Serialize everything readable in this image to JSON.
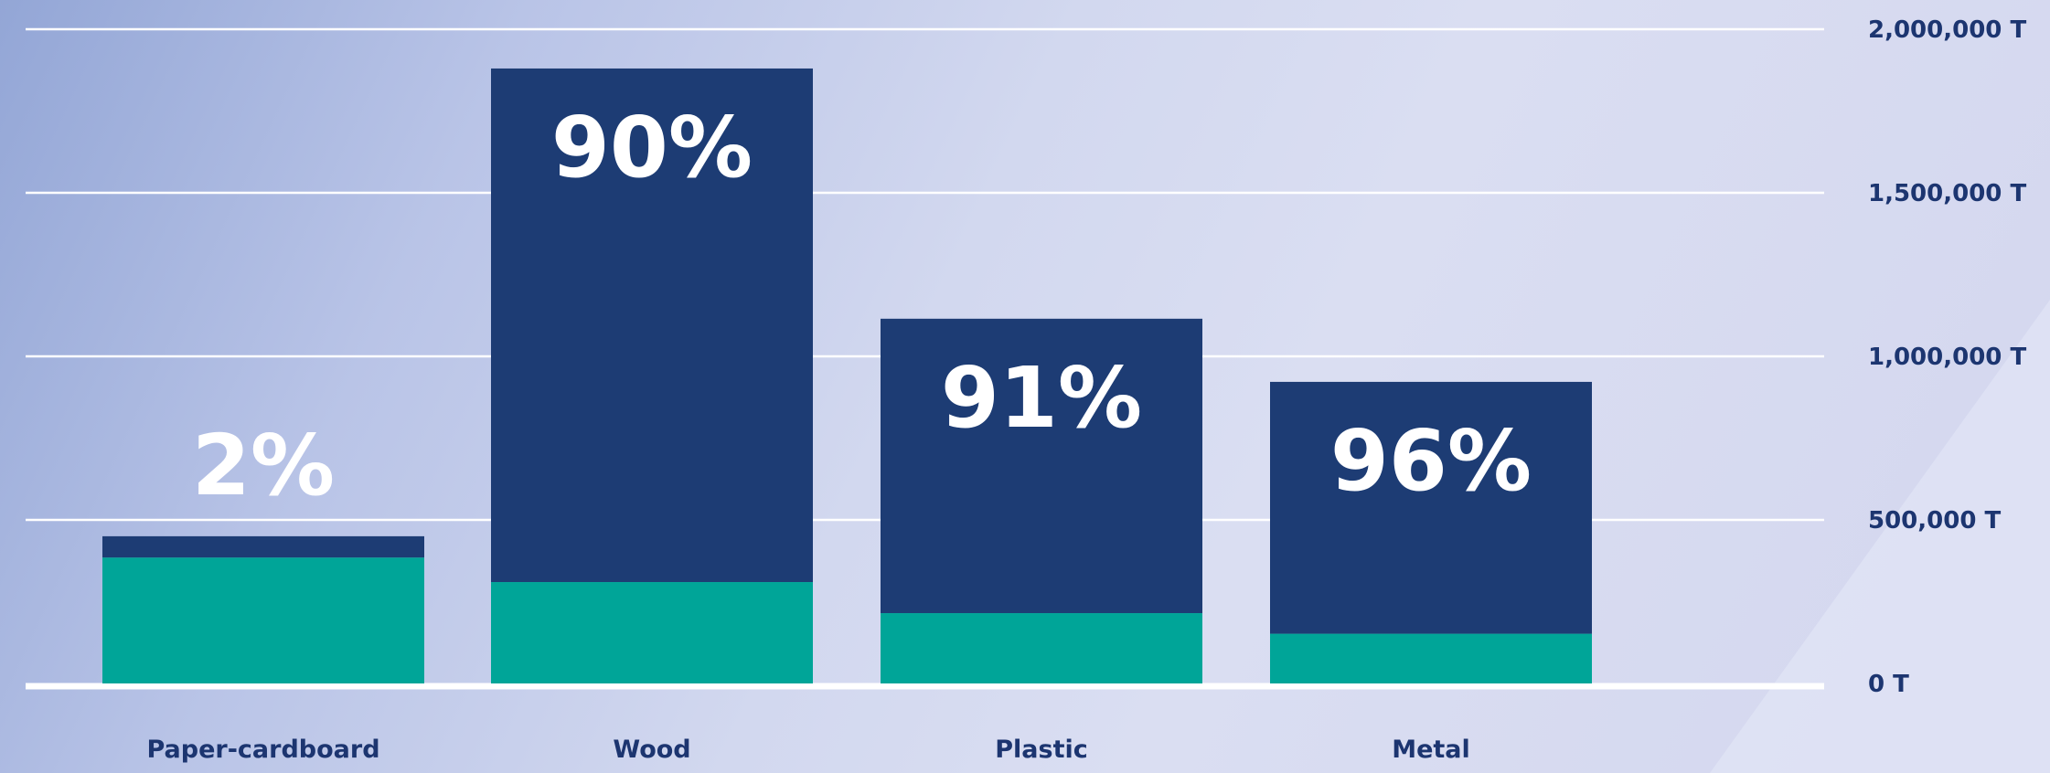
{
  "chart_data": {
    "type": "bar",
    "stacked": true,
    "categories": [
      "Paper-cardboard",
      "Wood",
      "Plastic",
      "Metal"
    ],
    "series": [
      {
        "values": [
          385000,
          310000,
          215000,
          152000
        ],
        "color": "#00a598"
      },
      {
        "values": [
          65000,
          1570000,
          900000,
          770000
        ],
        "color": "#1d3c74"
      }
    ],
    "totals": [
      450000,
      1880000,
      1115000,
      922000
    ],
    "data_labels": [
      "2%",
      "90%",
      "91%",
      "96%"
    ],
    "y_ticks": [
      0,
      500000,
      1000000,
      1500000,
      2000000
    ],
    "y_tick_labels": [
      "0 T",
      "500,000 T",
      "1,000,000 T",
      "1,500,000 T",
      "2,000,000 T"
    ],
    "ylim": [
      0,
      2000000
    ],
    "y_axis_position": "right",
    "grid": true,
    "legend": "none",
    "colors": {
      "text": "#1c3570",
      "grid": "#ffffff",
      "label": "#ffffff"
    }
  }
}
